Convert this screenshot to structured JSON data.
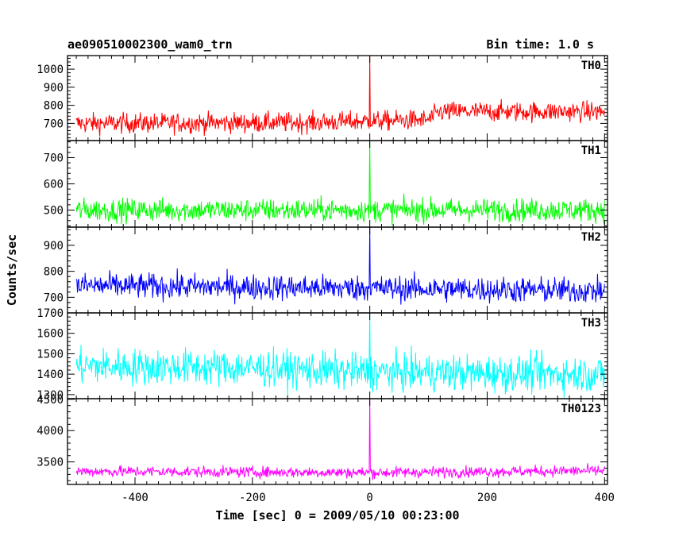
{
  "chart_data": {
    "type": "line",
    "title": "ae090510002300_wam0_trn",
    "bin_time_label": "Bin time: 1.0 s",
    "xlabel": "Time [sec] 0 = 2009/05/10 00:23:00",
    "ylabel": "Counts/sec",
    "xlim": [
      -515,
      405
    ],
    "x_ticks": [
      -400,
      -200,
      0,
      200,
      400
    ],
    "x_range": [
      -500,
      400
    ],
    "peak_x": 0,
    "series": [
      {
        "name": "TH0",
        "color": "#ff0000",
        "ylim": [
          605,
          1075
        ],
        "y_ticks": [
          700,
          800,
          900,
          1000
        ],
        "baseline_segments": [
          [
            -500,
            700
          ],
          [
            -100,
            705
          ],
          [
            100,
            720
          ],
          [
            120,
            765
          ],
          [
            400,
            765
          ]
        ],
        "noise": 28,
        "peak_value": 1070
      },
      {
        "name": "TH1",
        "color": "#00ff00",
        "ylim": [
          435,
          765
        ],
        "y_ticks": [
          500,
          600,
          700
        ],
        "baseline_segments": [
          [
            -500,
            500
          ],
          [
            400,
            500
          ]
        ],
        "noise": 22,
        "peak_value": 765
      },
      {
        "name": "TH2",
        "color": "#0000ff",
        "ylim": [
          640,
          970
        ],
        "y_ticks": [
          700,
          800,
          900
        ],
        "baseline_segments": [
          [
            -500,
            745
          ],
          [
            0,
            735
          ],
          [
            400,
            725
          ]
        ],
        "noise": 25,
        "peak_value": 970
      },
      {
        "name": "TH3",
        "color": "#00ffff",
        "ylim": [
          1280,
          1700
        ],
        "y_ticks": [
          1300,
          1400,
          1500,
          1600,
          1700
        ],
        "baseline_segments": [
          [
            -500,
            1440
          ],
          [
            -200,
            1430
          ],
          [
            0,
            1410
          ],
          [
            400,
            1400
          ]
        ],
        "noise": 45,
        "peak_value": 1700
      },
      {
        "name": "TH0123",
        "color": "#ff00ff",
        "ylim": [
          3140,
          4510
        ],
        "y_ticks": [
          3500,
          4000,
          4500
        ],
        "baseline_segments": [
          [
            -500,
            3350
          ],
          [
            0,
            3330
          ],
          [
            400,
            3360
          ]
        ],
        "noise": 45,
        "peak_value": 4510
      }
    ]
  }
}
